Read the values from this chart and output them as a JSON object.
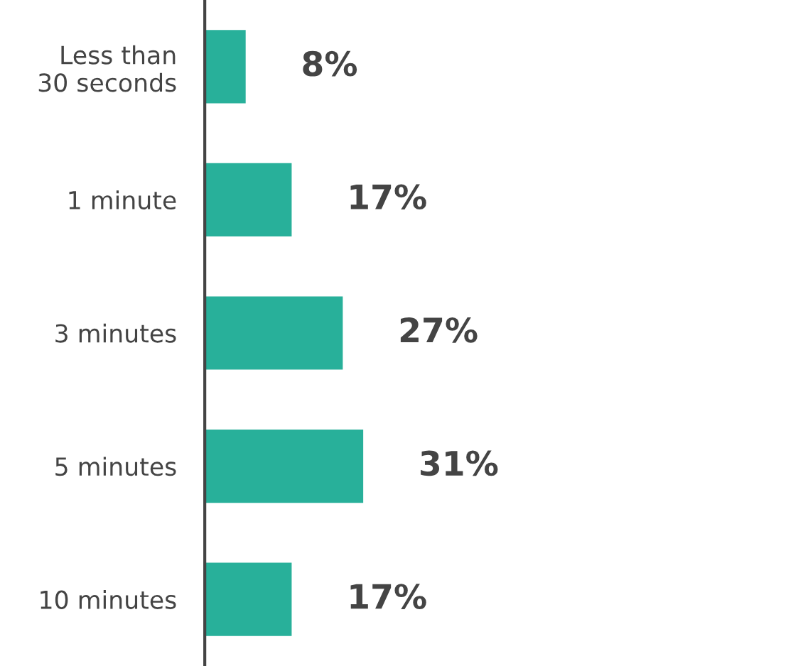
{
  "chart_data": {
    "type": "bar",
    "orientation": "horizontal",
    "categories": [
      "Less than\n30 seconds",
      "1 minute",
      "3 minutes",
      "5 minutes",
      "10 minutes"
    ],
    "values": [
      8,
      17,
      27,
      31,
      17
    ],
    "color": "#28b09a",
    "value_labels": [
      "8%",
      "17%",
      "27%",
      "31%",
      "17%"
    ],
    "tick_labels": "y",
    "grid": false,
    "legend": false
  }
}
